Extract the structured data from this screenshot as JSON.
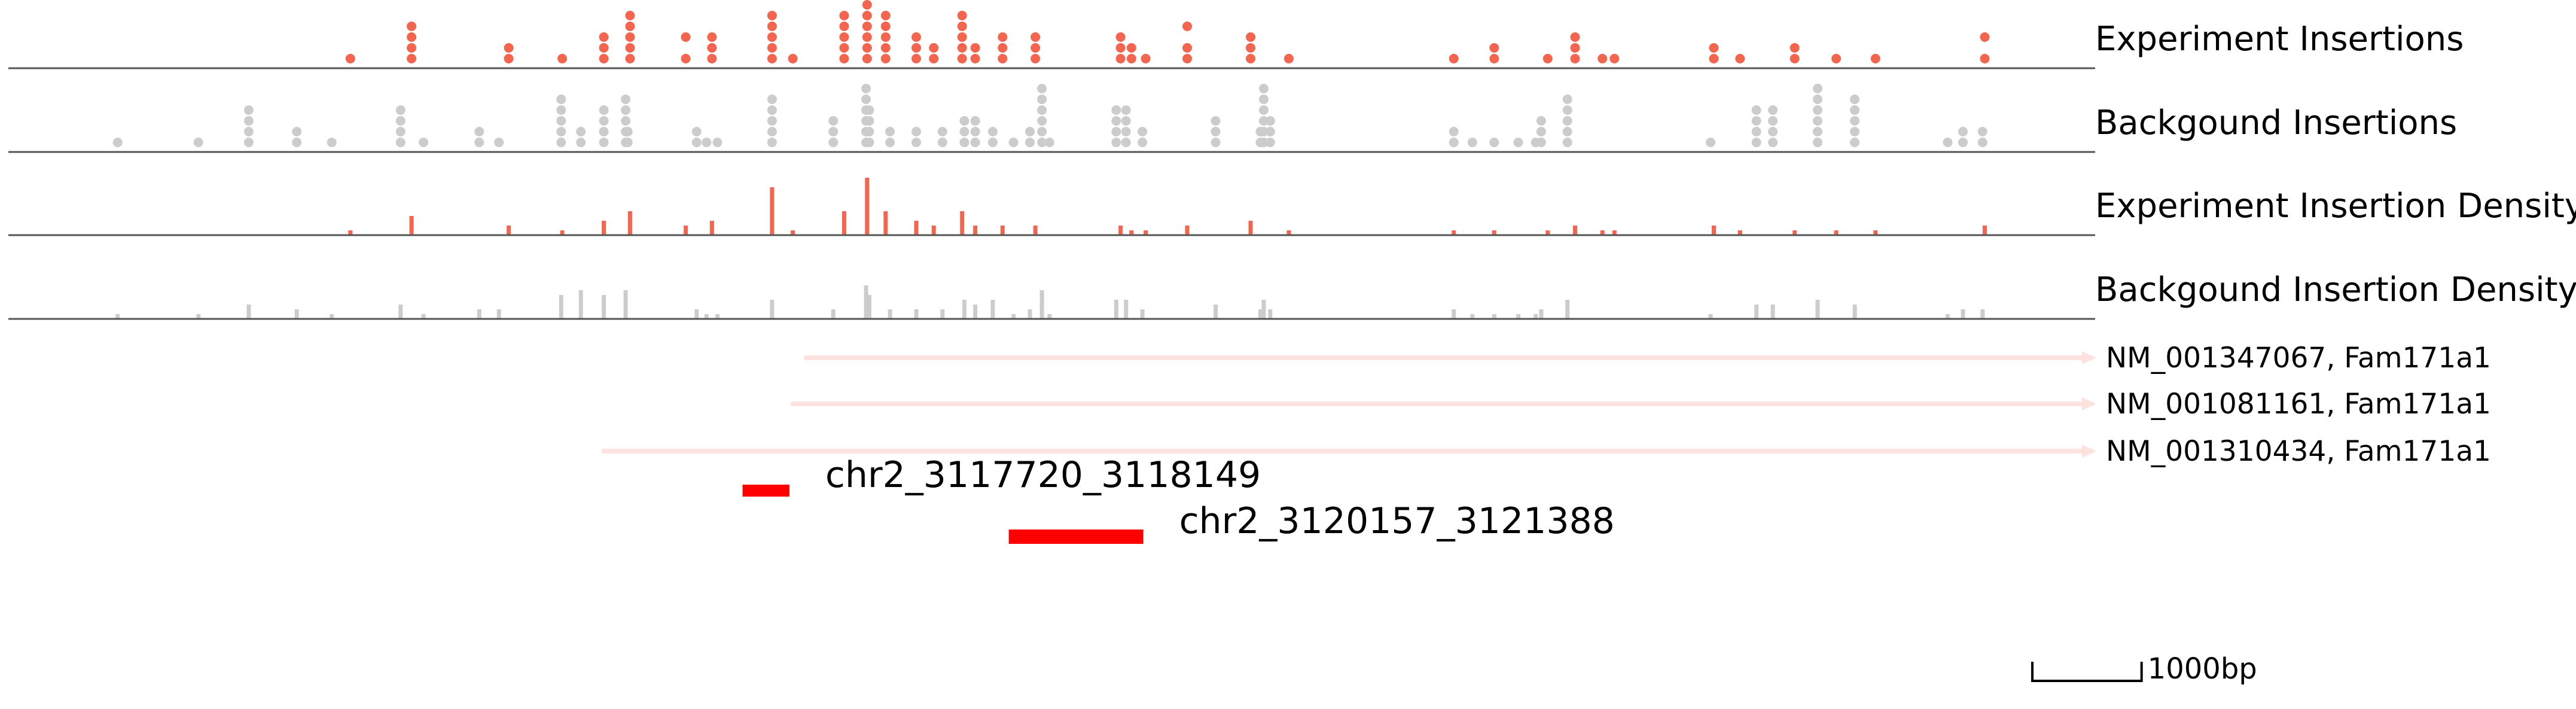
{
  "chart_data": {
    "type": "scatter",
    "x_range": [
      3111000,
      3130100
    ],
    "colors": {
      "experiment": "#f4654f",
      "background": "#cccccc",
      "gene": "#fde3e0",
      "peak": "#ff0000",
      "axis": "#555555"
    },
    "tracks": [
      {
        "label": "Experiment Insertions",
        "kind": "points",
        "series": "experiment"
      },
      {
        "label": "Backgound Insertions",
        "kind": "points",
        "series": "background"
      },
      {
        "label": "Experiment Insertion Density",
        "kind": "bars",
        "series": "experiment"
      },
      {
        "label": "Backgound Insertion Density",
        "kind": "bars",
        "series": "background"
      }
    ],
    "experiment_insertions": [
      [
        3114130,
        1
      ],
      [
        3114690,
        1
      ],
      [
        3114690,
        2
      ],
      [
        3114690,
        3
      ],
      [
        3114690,
        4
      ],
      [
        3115580,
        1
      ],
      [
        3115580,
        2
      ],
      [
        3116070,
        1
      ],
      [
        3116450,
        1
      ],
      [
        3116450,
        2
      ],
      [
        3116450,
        3
      ],
      [
        3116690,
        1
      ],
      [
        3116690,
        2
      ],
      [
        3116690,
        3
      ],
      [
        3116690,
        4
      ],
      [
        3116690,
        5
      ],
      [
        3117200,
        1
      ],
      [
        3117200,
        3
      ],
      [
        3117440,
        1
      ],
      [
        3117440,
        2
      ],
      [
        3117440,
        3
      ],
      [
        3117990,
        1
      ],
      [
        3117990,
        2
      ],
      [
        3117990,
        3
      ],
      [
        3117990,
        4
      ],
      [
        3117990,
        5
      ],
      [
        3118180,
        1
      ],
      [
        3118650,
        1
      ],
      [
        3118650,
        2
      ],
      [
        3118650,
        3
      ],
      [
        3118650,
        4
      ],
      [
        3118650,
        5
      ],
      [
        3118860,
        1
      ],
      [
        3118860,
        2
      ],
      [
        3118860,
        3
      ],
      [
        3118860,
        4
      ],
      [
        3118860,
        5
      ],
      [
        3118860,
        6
      ],
      [
        3119030,
        1
      ],
      [
        3119030,
        2
      ],
      [
        3119030,
        3
      ],
      [
        3119030,
        4
      ],
      [
        3119030,
        5
      ],
      [
        3119310,
        1
      ],
      [
        3119310,
        2
      ],
      [
        3119310,
        3
      ],
      [
        3119470,
        1
      ],
      [
        3119470,
        2
      ],
      [
        3119730,
        1
      ],
      [
        3119730,
        2
      ],
      [
        3119730,
        3
      ],
      [
        3119730,
        4
      ],
      [
        3119730,
        5
      ],
      [
        3119850,
        1
      ],
      [
        3119850,
        2
      ],
      [
        3120100,
        1
      ],
      [
        3120100,
        2
      ],
      [
        3120100,
        3
      ],
      [
        3120400,
        1
      ],
      [
        3120400,
        2
      ],
      [
        3120400,
        3
      ],
      [
        3121180,
        1
      ],
      [
        3121180,
        2
      ],
      [
        3121180,
        3
      ],
      [
        3121280,
        1
      ],
      [
        3121280,
        2
      ],
      [
        3121410,
        1
      ],
      [
        3121790,
        1
      ],
      [
        3121790,
        2
      ],
      [
        3121790,
        4
      ],
      [
        3122370,
        1
      ],
      [
        3122370,
        2
      ],
      [
        3122370,
        3
      ],
      [
        3122720,
        1
      ],
      [
        3124230,
        1
      ],
      [
        3124600,
        1
      ],
      [
        3124600,
        2
      ],
      [
        3125090,
        1
      ],
      [
        3125340,
        1
      ],
      [
        3125340,
        2
      ],
      [
        3125340,
        3
      ],
      [
        3125590,
        1
      ],
      [
        3125700,
        1
      ],
      [
        3126610,
        1
      ],
      [
        3126610,
        2
      ],
      [
        3126850,
        1
      ],
      [
        3127350,
        1
      ],
      [
        3127350,
        2
      ],
      [
        3127730,
        1
      ],
      [
        3128090,
        1
      ],
      [
        3129090,
        1
      ],
      [
        3129090,
        3
      ]
    ],
    "background_insertions": [
      [
        3112000,
        1
      ],
      [
        3112740,
        1
      ],
      [
        3113200,
        1
      ],
      [
        3113200,
        2
      ],
      [
        3113200,
        3
      ],
      [
        3113200,
        4
      ],
      [
        3113640,
        1
      ],
      [
        3113640,
        2
      ],
      [
        3113960,
        1
      ],
      [
        3114590,
        1
      ],
      [
        3114590,
        2
      ],
      [
        3114590,
        3
      ],
      [
        3114590,
        4
      ],
      [
        3114800,
        1
      ],
      [
        3115310,
        1
      ],
      [
        3115310,
        2
      ],
      [
        3115490,
        1
      ],
      [
        3116060,
        1
      ],
      [
        3116060,
        2
      ],
      [
        3116060,
        3
      ],
      [
        3116060,
        4
      ],
      [
        3116060,
        5
      ],
      [
        3116240,
        1
      ],
      [
        3116240,
        2
      ],
      [
        3116450,
        1
      ],
      [
        3116450,
        2
      ],
      [
        3116450,
        3
      ],
      [
        3116450,
        4
      ],
      [
        3116650,
        1
      ],
      [
        3116650,
        2
      ],
      [
        3116650,
        3
      ],
      [
        3116650,
        4
      ],
      [
        3116650,
        5
      ],
      [
        3116670,
        1
      ],
      [
        3116670,
        2
      ],
      [
        3117300,
        1
      ],
      [
        3117300,
        2
      ],
      [
        3117390,
        1
      ],
      [
        3117490,
        1
      ],
      [
        3117990,
        1
      ],
      [
        3117990,
        2
      ],
      [
        3117990,
        3
      ],
      [
        3117990,
        4
      ],
      [
        3117990,
        5
      ],
      [
        3118550,
        1
      ],
      [
        3118550,
        2
      ],
      [
        3118550,
        3
      ],
      [
        3118850,
        1
      ],
      [
        3118850,
        2
      ],
      [
        3118850,
        3
      ],
      [
        3118850,
        4
      ],
      [
        3118850,
        5
      ],
      [
        3118850,
        6
      ],
      [
        3118880,
        1
      ],
      [
        3118880,
        2
      ],
      [
        3118880,
        3
      ],
      [
        3118880,
        4
      ],
      [
        3119070,
        1
      ],
      [
        3119070,
        2
      ],
      [
        3119310,
        1
      ],
      [
        3119310,
        2
      ],
      [
        3119550,
        1
      ],
      [
        3119550,
        2
      ],
      [
        3119750,
        1
      ],
      [
        3119750,
        2
      ],
      [
        3119750,
        3
      ],
      [
        3119850,
        1
      ],
      [
        3119850,
        2
      ],
      [
        3119850,
        3
      ],
      [
        3120010,
        1
      ],
      [
        3120010,
        2
      ],
      [
        3120200,
        1
      ],
      [
        3120350,
        1
      ],
      [
        3120350,
        2
      ],
      [
        3120460,
        1
      ],
      [
        3120460,
        2
      ],
      [
        3120460,
        3
      ],
      [
        3120460,
        4
      ],
      [
        3120460,
        5
      ],
      [
        3120460,
        6
      ],
      [
        3120530,
        1
      ],
      [
        3121140,
        1
      ],
      [
        3121140,
        2
      ],
      [
        3121140,
        3
      ],
      [
        3121140,
        4
      ],
      [
        3121230,
        1
      ],
      [
        3121230,
        2
      ],
      [
        3121230,
        3
      ],
      [
        3121230,
        4
      ],
      [
        3121380,
        1
      ],
      [
        3121380,
        2
      ],
      [
        3122050,
        1
      ],
      [
        3122050,
        2
      ],
      [
        3122050,
        3
      ],
      [
        3122460,
        1
      ],
      [
        3122460,
        2
      ],
      [
        3122490,
        1
      ],
      [
        3122490,
        2
      ],
      [
        3122490,
        3
      ],
      [
        3122490,
        4
      ],
      [
        3122490,
        5
      ],
      [
        3122490,
        6
      ],
      [
        3122550,
        1
      ],
      [
        3122550,
        2
      ],
      [
        3122550,
        3
      ],
      [
        3124230,
        1
      ],
      [
        3124230,
        2
      ],
      [
        3124400,
        1
      ],
      [
        3124600,
        1
      ],
      [
        3124820,
        1
      ],
      [
        3124980,
        1
      ],
      [
        3125030,
        1
      ],
      [
        3125030,
        2
      ],
      [
        3125030,
        3
      ],
      [
        3125270,
        1
      ],
      [
        3125270,
        2
      ],
      [
        3125270,
        3
      ],
      [
        3125270,
        4
      ],
      [
        3125270,
        5
      ],
      [
        3126580,
        1
      ],
      [
        3127000,
        1
      ],
      [
        3127000,
        2
      ],
      [
        3127000,
        3
      ],
      [
        3127000,
        4
      ],
      [
        3127150,
        1
      ],
      [
        3127150,
        2
      ],
      [
        3127150,
        3
      ],
      [
        3127150,
        4
      ],
      [
        3127560,
        1
      ],
      [
        3127560,
        2
      ],
      [
        3127560,
        3
      ],
      [
        3127560,
        4
      ],
      [
        3127560,
        5
      ],
      [
        3127560,
        6
      ],
      [
        3127900,
        1
      ],
      [
        3127900,
        2
      ],
      [
        3127900,
        3
      ],
      [
        3127900,
        4
      ],
      [
        3127900,
        5
      ],
      [
        3128750,
        1
      ],
      [
        3128890,
        1
      ],
      [
        3128890,
        2
      ],
      [
        3129070,
        1
      ],
      [
        3129070,
        2
      ]
    ],
    "experiment_density": [
      [
        3114130,
        1
      ],
      [
        3114690,
        4
      ],
      [
        3115580,
        2
      ],
      [
        3116070,
        1
      ],
      [
        3116450,
        3
      ],
      [
        3116690,
        5
      ],
      [
        3117200,
        2
      ],
      [
        3117440,
        3
      ],
      [
        3117990,
        10
      ],
      [
        3118180,
        1
      ],
      [
        3118650,
        5
      ],
      [
        3118860,
        12
      ],
      [
        3119030,
        5
      ],
      [
        3119310,
        3
      ],
      [
        3119470,
        2
      ],
      [
        3119730,
        5
      ],
      [
        3119850,
        2
      ],
      [
        3120100,
        2
      ],
      [
        3120400,
        2
      ],
      [
        3121180,
        2
      ],
      [
        3121280,
        1
      ],
      [
        3121410,
        1
      ],
      [
        3121790,
        2
      ],
      [
        3122370,
        3
      ],
      [
        3122720,
        1
      ],
      [
        3124230,
        1
      ],
      [
        3124600,
        1
      ],
      [
        3125090,
        1
      ],
      [
        3125340,
        2
      ],
      [
        3125590,
        1
      ],
      [
        3125700,
        1
      ],
      [
        3126610,
        2
      ],
      [
        3126850,
        1
      ],
      [
        3127350,
        1
      ],
      [
        3127730,
        1
      ],
      [
        3128090,
        1
      ],
      [
        3129090,
        2
      ]
    ],
    "background_density": [
      [
        3112000,
        1
      ],
      [
        3112740,
        1
      ],
      [
        3113200,
        3
      ],
      [
        3113640,
        2
      ],
      [
        3113960,
        1
      ],
      [
        3114590,
        3
      ],
      [
        3114800,
        1
      ],
      [
        3115310,
        2
      ],
      [
        3115490,
        2
      ],
      [
        3116060,
        5
      ],
      [
        3116240,
        6
      ],
      [
        3116450,
        5
      ],
      [
        3116650,
        6
      ],
      [
        3117300,
        2
      ],
      [
        3117390,
        1
      ],
      [
        3117490,
        1
      ],
      [
        3117990,
        4
      ],
      [
        3118550,
        2
      ],
      [
        3118850,
        7
      ],
      [
        3118880,
        5
      ],
      [
        3119070,
        2
      ],
      [
        3119310,
        2
      ],
      [
        3119550,
        2
      ],
      [
        3119750,
        4
      ],
      [
        3119850,
        3
      ],
      [
        3120010,
        4
      ],
      [
        3120200,
        1
      ],
      [
        3120350,
        2
      ],
      [
        3120460,
        6
      ],
      [
        3120530,
        1
      ],
      [
        3121140,
        4
      ],
      [
        3121230,
        4
      ],
      [
        3121380,
        2
      ],
      [
        3122050,
        3
      ],
      [
        3122460,
        2
      ],
      [
        3122490,
        4
      ],
      [
        3122550,
        2
      ],
      [
        3124230,
        2
      ],
      [
        3124400,
        1
      ],
      [
        3124600,
        1
      ],
      [
        3124820,
        1
      ],
      [
        3124980,
        1
      ],
      [
        3125030,
        2
      ],
      [
        3125270,
        4
      ],
      [
        3126580,
        1
      ],
      [
        3127000,
        3
      ],
      [
        3127150,
        3
      ],
      [
        3127560,
        4
      ],
      [
        3127900,
        3
      ],
      [
        3128750,
        1
      ],
      [
        3128890,
        2
      ],
      [
        3129070,
        2
      ]
    ],
    "genes": [
      {
        "label": "NM_001347067, Fam171a1",
        "start": 3118300,
        "end": 3130100
      },
      {
        "label": "NM_001081161, Fam171a1",
        "start": 3118180,
        "end": 3130100
      },
      {
        "label": "NM_001310434, Fam171a1",
        "start": 3116450,
        "end": 3130100
      }
    ],
    "peaks": [
      {
        "label": "chr2_3117720_3118149",
        "start": 3117720,
        "end": 3118149
      },
      {
        "label": "chr2_3120157_3121388",
        "start": 3120157,
        "end": 3121388
      }
    ],
    "scale_bar": {
      "length_bp": 1000,
      "label": "1000bp"
    }
  }
}
